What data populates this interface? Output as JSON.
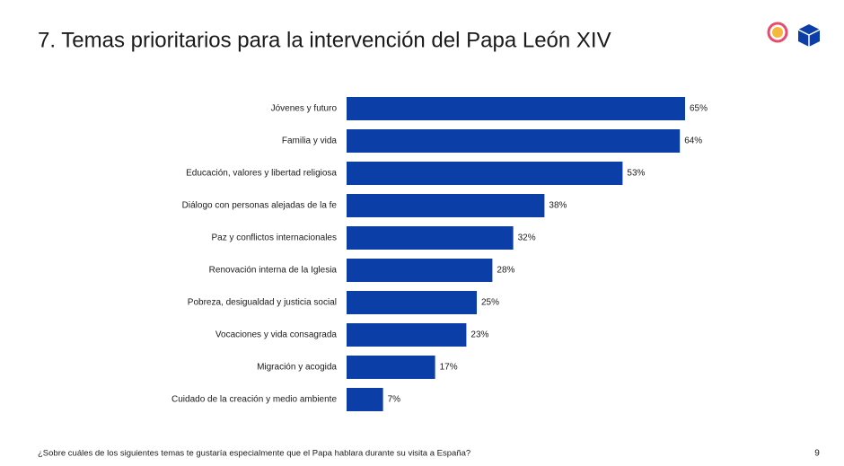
{
  "chart_data": {
    "type": "bar",
    "orientation": "horizontal",
    "title": "7. Temas prioritarios para la intervención del Papa León XIV",
    "categories": [
      "Jóvenes y futuro",
      "Familia y vida",
      "Educación, valores y libertad religiosa",
      "Diálogo con personas alejadas de la fe",
      "Paz y conflictos internacionales",
      "Renovación interna de la Iglesia",
      "Pobreza, desigualdad y justicia social",
      "Vocaciones y vida consagrada",
      "Migración y acogida",
      "Cuidado de la creación y medio ambiente"
    ],
    "values": [
      65,
      64,
      53,
      38,
      32,
      28,
      25,
      23,
      17,
      7
    ],
    "value_labels": [
      "65%",
      "64%",
      "53%",
      "38%",
      "32%",
      "28%",
      "25%",
      "23%",
      "17%",
      "7%"
    ],
    "color": "#0b3ea6"
  },
  "footer": {
    "question": "¿Sobre cuáles de los siguientes temas te gustaría especialmente que el Papa hablara durante su visita a España?",
    "page": 9
  }
}
